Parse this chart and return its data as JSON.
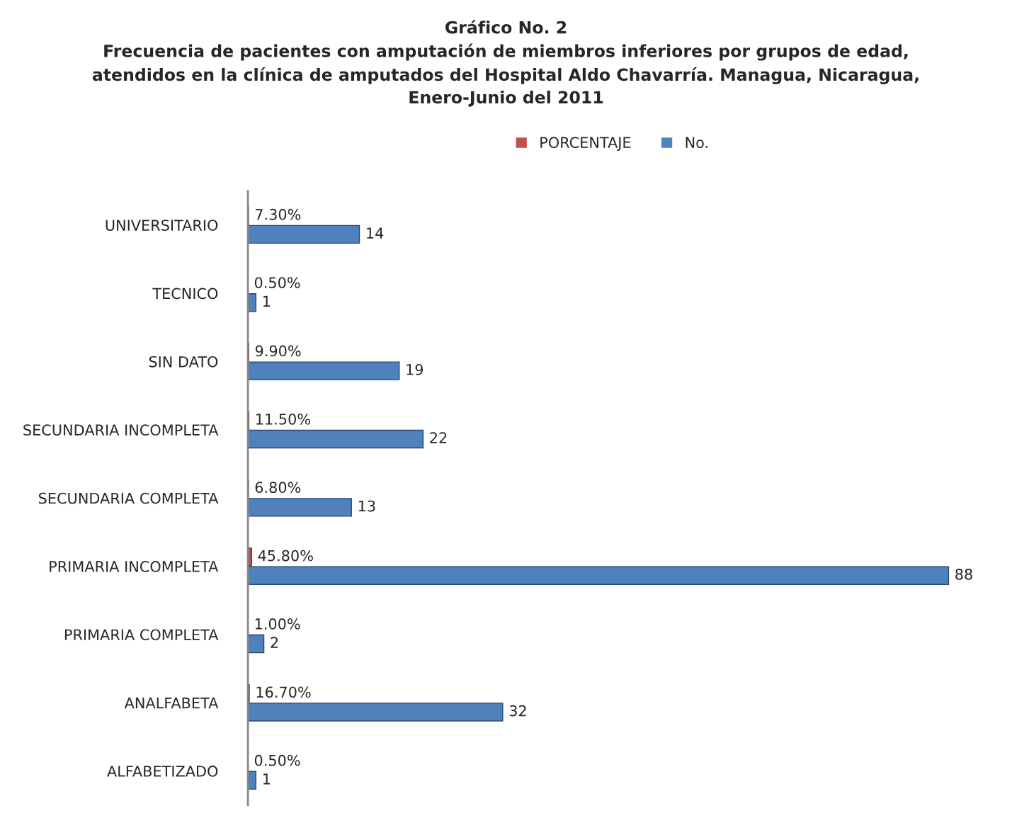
{
  "chart_data": {
    "type": "bar",
    "orientation": "horizontal",
    "title": "Gráfico No. 2\nFrecuencia de pacientes con amputación de miembros inferiores por grupos de edad,\natendidos en la clínica de amputados del Hospital Aldo Chavarría. Managua, Nicaragua,\nEnero-Junio del 2011",
    "categories": [
      "UNIVERSITARIO",
      "TECNICO",
      "SIN DATO",
      "SECUNDARIA INCOMPLETA",
      "SECUNDARIA COMPLETA",
      "PRIMARIA INCOMPLETA",
      "PRIMARIA COMPLETA",
      "ANALFABETA",
      "ALFABETIZADO"
    ],
    "series": [
      {
        "name": "PORCENTAJE",
        "color": "#c0504d",
        "values": [
          0.073,
          0.005,
          0.099,
          0.115,
          0.068,
          0.458,
          0.01,
          0.167,
          0.005
        ],
        "value_labels": [
          "7.30%",
          "0.50%",
          "9.90%",
          "11.50%",
          "6.80%",
          "45.80%",
          "1.00%",
          "16.70%",
          "0.50%"
        ]
      },
      {
        "name": "No.",
        "color": "#4f81bd",
        "values": [
          14,
          1,
          19,
          22,
          13,
          88,
          2,
          32,
          1
        ]
      }
    ],
    "data_labels": true,
    "legend": "top",
    "grid": false,
    "tick_labels": "y"
  }
}
